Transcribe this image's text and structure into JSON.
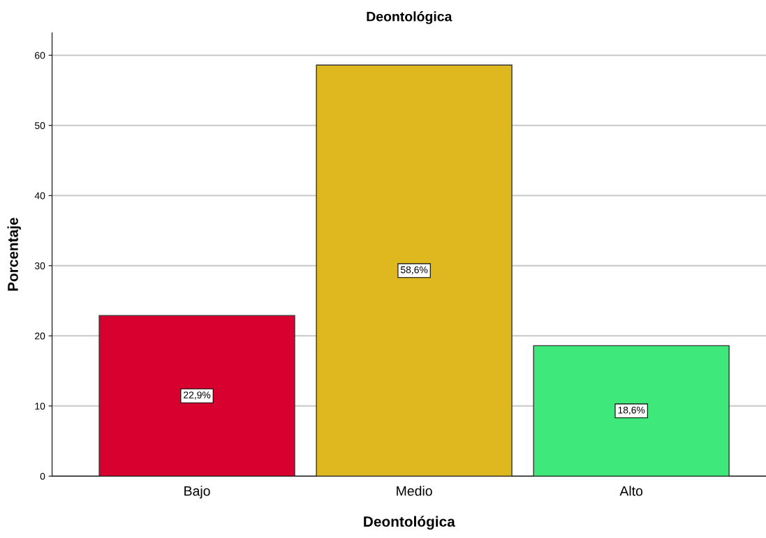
{
  "chart_data": {
    "type": "bar",
    "title": "Deontológica",
    "xlabel": "Deontológica",
    "ylabel": "Porcentaje",
    "categories": [
      "Bajo",
      "Medio",
      "Alto"
    ],
    "values": [
      22.9,
      58.6,
      18.6
    ],
    "colors": [
      "#d7002f",
      "#dfb81f",
      "#3fe87b"
    ],
    "value_labels": [
      "22,9%",
      "58,6%",
      "18,6%"
    ],
    "ylim": [
      0,
      63.2
    ],
    "yticks": [
      0,
      10,
      20,
      30,
      40,
      50,
      60
    ],
    "grid": "y",
    "legend": false
  }
}
